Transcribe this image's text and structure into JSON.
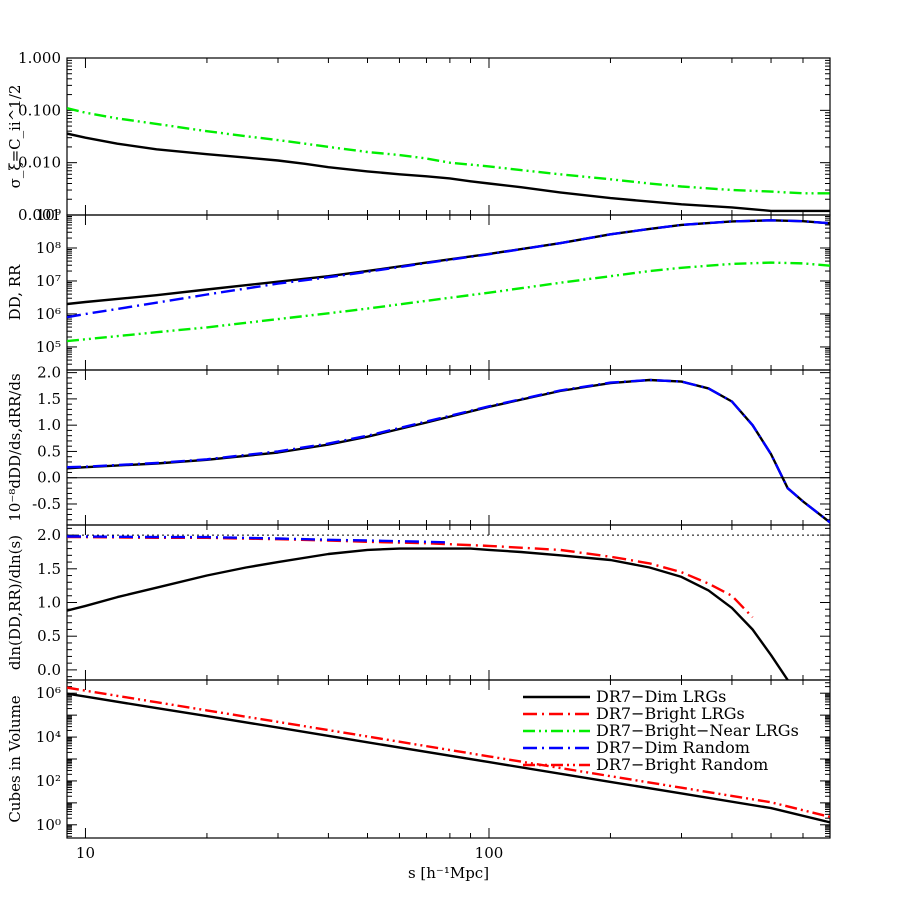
{
  "chart_data": [
    {
      "type": "line",
      "panel": 1,
      "xscale": "log",
      "yscale": "log",
      "xlim": [
        9,
        700
      ],
      "ylim": [
        0.001,
        1.0
      ],
      "grid": false,
      "ylabel": "σ_ξ=C_ii^1/2",
      "ytick_labels": [
        "0.001",
        "0.010",
        "0.100",
        "1.000"
      ],
      "ytick_values": [
        0.001,
        0.01,
        0.1,
        1.0
      ],
      "series": [
        {
          "legend_index": 0,
          "color": "#000000",
          "style": "solid",
          "x": [
            9,
            10,
            12,
            15,
            20,
            25,
            30,
            35,
            40,
            50,
            60,
            70,
            80,
            90,
            100,
            120,
            150,
            200,
            250,
            300,
            400,
            500,
            600,
            700
          ],
          "y": [
            0.036,
            0.03,
            0.023,
            0.018,
            0.0145,
            0.0125,
            0.011,
            0.0095,
            0.0082,
            0.0068,
            0.006,
            0.0055,
            0.005,
            0.0044,
            0.004,
            0.0034,
            0.0027,
            0.0021,
            0.0018,
            0.0016,
            0.0014,
            0.0012,
            0.0012,
            0.0012
          ]
        },
        {
          "legend_index": 2,
          "color": "#00ee00",
          "style": "dash-dot-dot",
          "x": [
            9,
            10,
            12,
            15,
            20,
            25,
            30,
            35,
            40,
            50,
            60,
            70,
            80,
            90,
            100,
            120,
            150,
            200,
            250,
            300,
            400,
            500,
            600,
            700
          ],
          "y": [
            0.11,
            0.09,
            0.07,
            0.055,
            0.04,
            0.032,
            0.027,
            0.023,
            0.02,
            0.016,
            0.014,
            0.012,
            0.01,
            0.0092,
            0.0085,
            0.0072,
            0.006,
            0.0048,
            0.004,
            0.0035,
            0.003,
            0.0028,
            0.0026,
            0.0026
          ]
        }
      ]
    },
    {
      "type": "line",
      "panel": 2,
      "xscale": "log",
      "yscale": "log",
      "xlim": [
        9,
        700
      ],
      "ylim": [
        20000,
        1000000000
      ],
      "grid": false,
      "ylabel": "DD, RR",
      "ytick_labels": [
        "10⁵",
        "10⁶",
        "10⁷",
        "10⁸",
        "10⁹"
      ],
      "ytick_values": [
        100000,
        1000000,
        10000000,
        100000000,
        1000000000
      ],
      "series": [
        {
          "legend_index": 0,
          "color": "#000000",
          "style": "solid",
          "x": [
            9,
            10,
            15,
            20,
            30,
            40,
            50,
            70,
            100,
            150,
            200,
            250,
            300,
            400,
            500,
            600,
            700
          ],
          "y": [
            2000000,
            2300000,
            3700000,
            5500000,
            9500000,
            14000000,
            20000000,
            36000000,
            66000000,
            140000000,
            260000000,
            380000000,
            500000000,
            640000000,
            690000000,
            650000000,
            560000000
          ]
        },
        {
          "legend_index": 3,
          "color": "#0000ff",
          "style": "dash-dot",
          "x": [
            9,
            10,
            15,
            20,
            30,
            40,
            50,
            70,
            100,
            150,
            200,
            250,
            300,
            400,
            500,
            600,
            700
          ],
          "y": [
            800000,
            1000000,
            2200000,
            3900000,
            8300000,
            13000000,
            19000000,
            35000000,
            65000000,
            140000000,
            260000000,
            380000000,
            500000000,
            640000000,
            690000000,
            650000000,
            560000000
          ]
        },
        {
          "legend_index": 2,
          "color": "#00ee00",
          "style": "dash-dot-dot",
          "x": [
            9,
            10,
            15,
            20,
            30,
            40,
            50,
            70,
            100,
            150,
            200,
            250,
            300,
            400,
            500,
            600,
            700
          ],
          "y": [
            150000,
            170000,
            280000,
            390000,
            700000,
            1050000,
            1450000,
            2500000,
            4400000,
            8800000,
            14000000,
            20000000,
            25000000,
            33000000,
            36000000,
            34000000,
            29000000
          ]
        }
      ]
    },
    {
      "type": "line",
      "panel": 3,
      "xscale": "log",
      "yscale": "linear",
      "xlim": [
        9,
        700
      ],
      "ylim": [
        -0.9,
        2.05
      ],
      "grid": false,
      "hline": 0,
      "ylabel": "10⁻⁸dDD/ds,dRR/ds",
      "ytick_labels": [
        "-0.5",
        "0.0",
        "0.5",
        "1.0",
        "1.5",
        "2.0"
      ],
      "ytick_values": [
        -0.5,
        0,
        0.5,
        1.0,
        1.5,
        2.0
      ],
      "series": [
        {
          "legend_index": 0,
          "color": "#000000",
          "style": "solid",
          "x": [
            9,
            10,
            15,
            20,
            30,
            40,
            50,
            70,
            100,
            150,
            200,
            250,
            300,
            350,
            400,
            450,
            500,
            550,
            600,
            700
          ],
          "y": [
            0.18,
            0.2,
            0.27,
            0.34,
            0.48,
            0.63,
            0.78,
            1.05,
            1.35,
            1.65,
            1.8,
            1.86,
            1.83,
            1.7,
            1.45,
            1.0,
            0.45,
            -0.2,
            -0.45,
            -0.85
          ]
        },
        {
          "legend_index": 3,
          "color": "#0000ff",
          "style": "dash-dot",
          "x": [
            9,
            10,
            15,
            20,
            30,
            40,
            50,
            70,
            100,
            150,
            200,
            250,
            300,
            350,
            400,
            450,
            500,
            550,
            600,
            700
          ],
          "y": [
            0.2,
            0.21,
            0.28,
            0.35,
            0.5,
            0.65,
            0.8,
            1.07,
            1.36,
            1.66,
            1.81,
            1.86,
            1.83,
            1.7,
            1.45,
            1.0,
            0.45,
            -0.2,
            -0.45,
            -0.85
          ]
        }
      ]
    },
    {
      "type": "line",
      "panel": 4,
      "xscale": "log",
      "yscale": "linear",
      "xlim": [
        9,
        700
      ],
      "ylim": [
        -0.15,
        2.15
      ],
      "grid": false,
      "hline": 2.0,
      "ylabel": "dln(DD,RR)/dln(s)",
      "ytick_labels": [
        "0.0",
        "0.5",
        "1.0",
        "1.5",
        "2.0"
      ],
      "ytick_values": [
        0,
        0.5,
        1.0,
        1.5,
        2.0
      ],
      "series": [
        {
          "legend_index": 0,
          "color": "#000000",
          "style": "solid",
          "x": [
            9,
            10,
            12,
            15,
            20,
            25,
            30,
            40,
            50,
            60,
            70,
            80,
            90,
            100,
            120,
            150,
            200,
            250,
            300,
            350,
            400,
            450,
            500,
            550
          ],
          "y": [
            0.88,
            0.95,
            1.08,
            1.22,
            1.4,
            1.52,
            1.6,
            1.72,
            1.78,
            1.8,
            1.8,
            1.8,
            1.8,
            1.78,
            1.75,
            1.7,
            1.63,
            1.52,
            1.38,
            1.18,
            0.92,
            0.6,
            0.22,
            -0.15
          ]
        },
        {
          "legend_index": 1,
          "color": "#ff0000",
          "style": "dash-dot",
          "x": [
            9,
            10,
            15,
            20,
            30,
            40,
            50,
            70,
            100,
            150,
            200,
            250,
            300,
            350,
            400,
            450
          ],
          "y": [
            1.97,
            1.97,
            1.96,
            1.96,
            1.94,
            1.92,
            1.9,
            1.88,
            1.84,
            1.78,
            1.68,
            1.58,
            1.45,
            1.28,
            1.1,
            0.78
          ]
        },
        {
          "legend_index": 3,
          "color": "#0000ff",
          "style": "dash-dot",
          "x": [
            9,
            10,
            15,
            20,
            30,
            40,
            50,
            70,
            80
          ],
          "y": [
            1.98,
            1.98,
            1.97,
            1.97,
            1.95,
            1.93,
            1.92,
            1.9,
            1.89
          ]
        }
      ]
    },
    {
      "type": "line",
      "panel": 5,
      "xscale": "log",
      "yscale": "log",
      "xlim": [
        9,
        700
      ],
      "ylim": [
        0.25,
        4000000
      ],
      "grid": false,
      "ylabel": "Cubes in Volume",
      "xlabel": "s [h⁻¹Mpc]",
      "ytick_labels": [
        "10⁰",
        "10²",
        "10⁴",
        "10⁶"
      ],
      "ytick_values": [
        1,
        100,
        10000,
        1000000
      ],
      "xtick_labels": [
        "10",
        "100"
      ],
      "xtick_values": [
        10,
        100
      ],
      "legend": "top-right",
      "series": [
        {
          "legend_index": 0,
          "color": "#000000",
          "style": "solid",
          "x": [
            9,
            10,
            15,
            20,
            30,
            50,
            100,
            200,
            300,
            500,
            700
          ],
          "y": [
            950000,
            700000,
            210000,
            90000,
            27000,
            5800,
            720,
            90,
            27,
            5.8,
            1.3
          ]
        },
        {
          "legend_index": 4,
          "color": "#ff0000",
          "style": "dash-dot-dot",
          "x": [
            9,
            10,
            15,
            20,
            30,
            50,
            100,
            200,
            300,
            500,
            700
          ],
          "y": [
            1800000,
            1300000,
            390000,
            165000,
            49000,
            10600,
            1320,
            165,
            49,
            10.6,
            2.3
          ]
        }
      ]
    }
  ],
  "legend": {
    "entries": [
      {
        "label": "DR7−Dim LRGs",
        "color": "#000000",
        "style": "solid"
      },
      {
        "label": "DR7−Bright LRGs",
        "color": "#ff0000",
        "style": "dash-dot"
      },
      {
        "label": "DR7−Bright−Near LRGs",
        "color": "#00ee00",
        "style": "dash-dot-dot"
      },
      {
        "label": "DR7−Dim Random",
        "color": "#0000ff",
        "style": "dash-dot"
      },
      {
        "label": "DR7−Bright Random",
        "color": "#ff0000",
        "style": "dash-dot-dot"
      }
    ]
  }
}
